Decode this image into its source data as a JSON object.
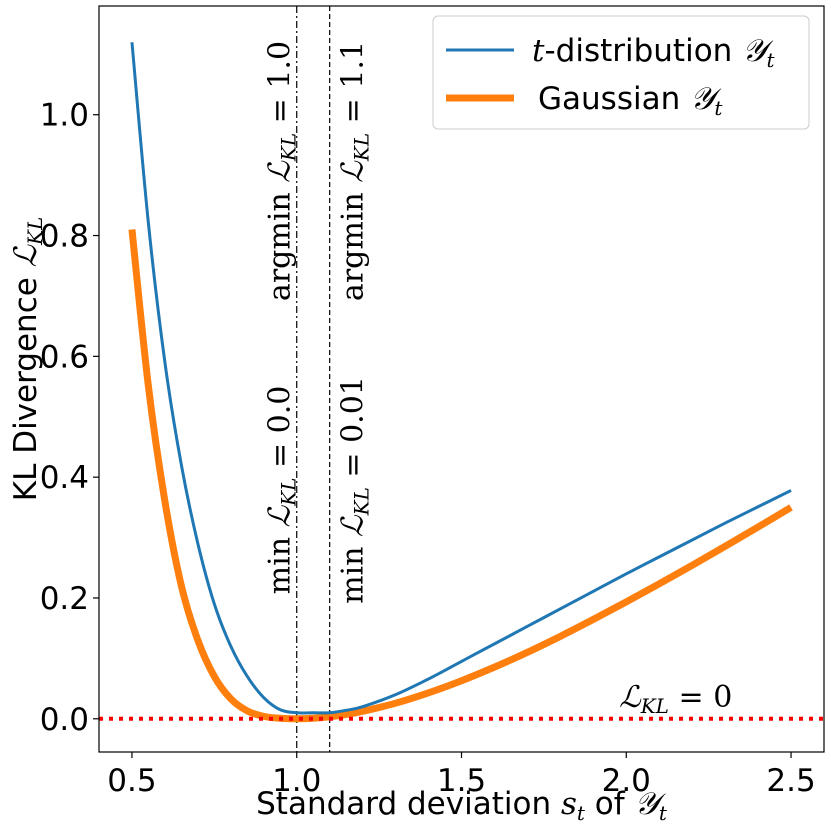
{
  "chart_data": {
    "type": "line",
    "title": "",
    "xlabel": "Standard deviation s_t of 𝒴_t",
    "ylabel": "KL Divergence ℒ_KL",
    "xlim": [
      0.4,
      2.6
    ],
    "ylim": [
      -0.055,
      1.18
    ],
    "xticks": [
      0.5,
      1.0,
      1.5,
      2.0,
      2.5
    ],
    "xtick_labels": [
      "0.5",
      "1.0",
      "1.5",
      "2.0",
      "2.5"
    ],
    "yticks": [
      0.0,
      0.2,
      0.4,
      0.6,
      0.8,
      1.0
    ],
    "ytick_labels": [
      "0.0",
      "0.2",
      "0.4",
      "0.6",
      "0.8",
      "1.0"
    ],
    "series": [
      {
        "name": "t-distribution 𝒴_t",
        "color": "#1f77b4",
        "x": [
          0.5,
          0.55,
          0.6,
          0.65,
          0.7,
          0.75,
          0.8,
          0.85,
          0.9,
          0.95,
          1.0,
          1.05,
          1.1,
          1.15,
          1.2,
          1.3,
          1.4,
          1.5,
          1.6,
          1.7,
          1.8,
          1.9,
          2.0,
          2.1,
          2.2,
          2.3,
          2.4,
          2.5
        ],
        "values": [
          1.12,
          0.82,
          0.59,
          0.42,
          0.29,
          0.19,
          0.12,
          0.07,
          0.035,
          0.015,
          0.01,
          0.01,
          0.01,
          0.014,
          0.02,
          0.04,
          0.066,
          0.095,
          0.124,
          0.153,
          0.182,
          0.211,
          0.24,
          0.268,
          0.296,
          0.324,
          0.351,
          0.378
        ]
      },
      {
        "name": "Gaussian 𝒴_t",
        "color": "#ff7f0e",
        "x": [
          0.5,
          0.55,
          0.6,
          0.65,
          0.7,
          0.75,
          0.8,
          0.85,
          0.9,
          0.95,
          1.0,
          1.05,
          1.1,
          1.15,
          1.2,
          1.3,
          1.4,
          1.5,
          1.6,
          1.7,
          1.8,
          1.9,
          2.0,
          2.1,
          2.2,
          2.3,
          2.4,
          2.5
        ],
        "values": [
          0.81,
          0.55,
          0.36,
          0.22,
          0.13,
          0.07,
          0.033,
          0.013,
          0.004,
          0.0008,
          0.0,
          0.0008,
          0.0033,
          0.0072,
          0.0123,
          0.0258,
          0.043,
          0.063,
          0.0855,
          0.11,
          0.1365,
          0.1645,
          0.1935,
          0.2235,
          0.254,
          0.2855,
          0.3175,
          0.35
        ]
      }
    ],
    "vlines": [
      {
        "x": 1.0,
        "style": "dashdot",
        "label_min": "min ℒ_KL = 0.0",
        "label_argmin": "argmin ℒ_KL = 1.0"
      },
      {
        "x": 1.1,
        "style": "dashed",
        "label_min": "min ℒ_KL = 0.01",
        "label_argmin": "argmin ℒ_KL = 1.1"
      }
    ],
    "hline": {
      "y": 0.0,
      "color": "#ff0000",
      "style": "dotted",
      "label": "ℒ_KL = 0"
    },
    "legend": {
      "position": "top-right"
    }
  },
  "text": {
    "xlabel_pre": "Standard deviation ",
    "xlabel_s": "s",
    "xlabel_t": "t",
    "xlabel_of": " of ",
    "ylabel_pre": "KL Divergence ",
    "script_y": "𝒴",
    "script_l": "ℒ",
    "sub_t": "t",
    "sub_kl": "KL",
    "legend_t_italic": "t",
    "legend_t_rest": "-distribution ",
    "legend_gauss": "Gaussian ",
    "min_word": "min",
    "argmin_word": "argmin",
    "eq": " = ",
    "v1_min_val": "0.0",
    "v1_argmin_val": "1.0",
    "v2_min_val": "0.01",
    "v2_argmin_val": "1.1",
    "hline_val": "0"
  }
}
